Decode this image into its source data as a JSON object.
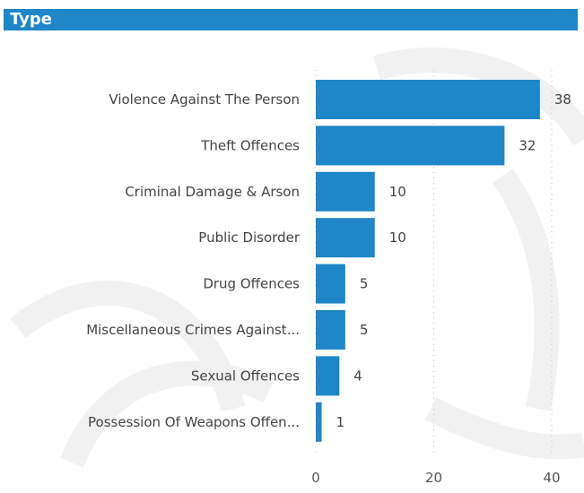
{
  "header": {
    "title": "Type"
  },
  "colors": {
    "bar": "#1f86c8",
    "title_bg": "#1f86c8",
    "gridline": "#bbbbbb"
  },
  "chart_data": {
    "type": "bar",
    "orientation": "horizontal",
    "title": "Type",
    "categories": [
      "Violence Against The Person",
      "Theft Offences",
      "Criminal Damage & Arson",
      "Public Disorder",
      "Drug Offences",
      "Miscellaneous Crimes Against...",
      "Sexual Offences",
      "Possession Of Weapons Offen..."
    ],
    "values": [
      38,
      32,
      10,
      10,
      5,
      5,
      4,
      1
    ],
    "xlabel": "",
    "ylabel": "",
    "xlim": [
      0,
      40
    ],
    "xticks": [
      0,
      20,
      40
    ],
    "grid": true,
    "data_labels": true
  }
}
